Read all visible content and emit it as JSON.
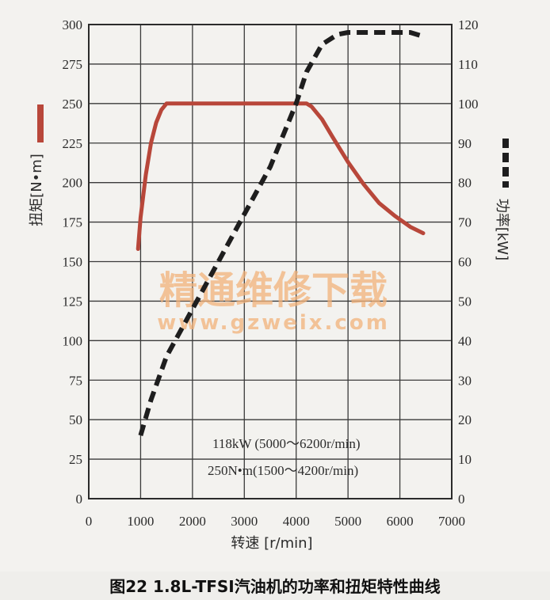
{
  "chart_data": {
    "type": "line",
    "x_axis": {
      "label": "转速 [r/min]",
      "min": 0,
      "max": 7000,
      "ticks": [
        0,
        1000,
        2000,
        3000,
        4000,
        5000,
        6000,
        7000
      ]
    },
    "y_left": {
      "label": "扭矩[N•m]",
      "min": 0,
      "max": 300,
      "ticks": [
        0,
        25,
        50,
        75,
        100,
        125,
        150,
        175,
        200,
        225,
        250,
        275,
        300
      ]
    },
    "y_right": {
      "label": "功率[kW]",
      "min": 0,
      "max": 120,
      "ticks": [
        0,
        10,
        20,
        30,
        40,
        50,
        60,
        70,
        80,
        90,
        100,
        110,
        120
      ]
    },
    "grid": true,
    "series": [
      {
        "name": "扭矩[N•m]",
        "axis": "left",
        "style": "solid",
        "color": "#b8473a",
        "points": [
          [
            950,
            158
          ],
          [
            1000,
            178
          ],
          [
            1100,
            205
          ],
          [
            1200,
            225
          ],
          [
            1300,
            238
          ],
          [
            1400,
            246
          ],
          [
            1500,
            250
          ],
          [
            1600,
            250
          ],
          [
            2000,
            250
          ],
          [
            2500,
            250
          ],
          [
            3000,
            250
          ],
          [
            3500,
            250
          ],
          [
            4000,
            250
          ],
          [
            4200,
            250
          ],
          [
            4300,
            248
          ],
          [
            4500,
            240
          ],
          [
            4700,
            229
          ],
          [
            5000,
            213
          ],
          [
            5300,
            199
          ],
          [
            5600,
            187
          ],
          [
            5900,
            179
          ],
          [
            6200,
            172
          ],
          [
            6450,
            168
          ]
        ]
      },
      {
        "name": "功率[kW]",
        "axis": "right",
        "style": "dashed",
        "color": "#1e1e1e",
        "points": [
          [
            1000,
            16
          ],
          [
            1200,
            25
          ],
          [
            1500,
            36
          ],
          [
            2000,
            48
          ],
          [
            2500,
            60
          ],
          [
            3000,
            72
          ],
          [
            3500,
            84
          ],
          [
            4000,
            100
          ],
          [
            4200,
            108
          ],
          [
            4500,
            115
          ],
          [
            4800,
            117.5
          ],
          [
            5000,
            118
          ],
          [
            5500,
            118
          ],
          [
            6000,
            118
          ],
          [
            6200,
            118
          ],
          [
            6450,
            117
          ]
        ]
      }
    ],
    "annotations": [
      "118kW (5000～6200r/min)",
      "250N•m(1500～4200r/min)"
    ]
  },
  "watermark": {
    "line1": "精通维修下载",
    "line2": "www.gzweix.com"
  },
  "caption": "图22 1.8L-TFSI汽油机的功率和扭矩特性曲线"
}
